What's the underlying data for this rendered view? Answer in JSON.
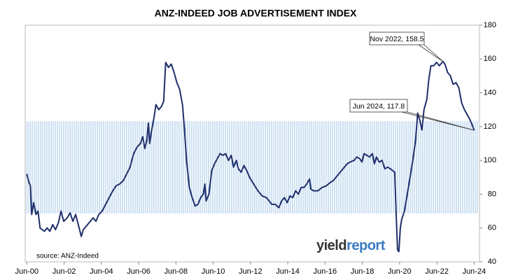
{
  "chart_data": {
    "type": "line",
    "title": "ANZ-INDEED JOB ADVERTISEMENT INDEX",
    "source": "source: ANZ-Indeed",
    "logo": [
      "yield",
      "report"
    ],
    "color": "#1f2f6b",
    "band_color": "#9dc3e6",
    "shaded_range": [
      68.6,
      123.2
    ],
    "xlim": [
      2000.45,
      2024.75
    ],
    "ylim": [
      40,
      180
    ],
    "yticks": [
      40,
      60,
      80,
      100,
      120,
      140,
      160,
      180
    ],
    "y_axis_side": "right",
    "xticks": [
      {
        "value": 2000.5,
        "label": "Jun-00"
      },
      {
        "value": 2002.5,
        "label": "Jun-02"
      },
      {
        "value": 2004.5,
        "label": "Jun-04"
      },
      {
        "value": 2006.5,
        "label": "Jun-06"
      },
      {
        "value": 2008.5,
        "label": "Jun-08"
      },
      {
        "value": 2010.5,
        "label": "Jun-10"
      },
      {
        "value": 2012.5,
        "label": "Jun-12"
      },
      {
        "value": 2014.5,
        "label": "Jun-14"
      },
      {
        "value": 2016.5,
        "label": "Jun-16"
      },
      {
        "value": 2018.5,
        "label": "Jun-18"
      },
      {
        "value": 2020.5,
        "label": "Jun-20"
      },
      {
        "value": 2022.5,
        "label": "Jun-22"
      },
      {
        "value": 2024.5,
        "label": "Jun-24"
      }
    ],
    "annotations": [
      {
        "text": "Nov 2022, 158.5",
        "x": 2022.83,
        "y": 158.5
      },
      {
        "text": "Jun 2024, 117.8",
        "x": 2024.5,
        "y": 117.8
      }
    ],
    "x": [
      2000.5,
      2000.61,
      2000.69,
      2000.76,
      2000.87,
      2000.99,
      2001.1,
      2001.21,
      2001.44,
      2001.59,
      2001.74,
      2001.89,
      2002.04,
      2002.19,
      2002.34,
      2002.48,
      2002.67,
      2002.82,
      2002.97,
      2003.12,
      2003.31,
      2003.42,
      2003.53,
      2003.76,
      2003.91,
      2004.06,
      2004.21,
      2004.36,
      2004.54,
      2004.73,
      2004.92,
      2005.11,
      2005.29,
      2005.48,
      2005.67,
      2005.86,
      2006.04,
      2006.23,
      2006.42,
      2006.6,
      2006.72,
      2006.83,
      2006.94,
      2007.02,
      2007.09,
      2007.2,
      2007.32,
      2007.43,
      2007.58,
      2007.73,
      2007.84,
      2007.95,
      2008.1,
      2008.25,
      2008.4,
      2008.55,
      2008.7,
      2008.85,
      2008.96,
      2009.07,
      2009.22,
      2009.37,
      2009.53,
      2009.68,
      2009.83,
      2009.97,
      2010.05,
      2010.12,
      2010.27,
      2010.42,
      2010.57,
      2010.72,
      2010.87,
      2011.02,
      2011.17,
      2011.32,
      2011.47,
      2011.59,
      2011.74,
      2011.85,
      2012.0,
      2012.15,
      2012.3,
      2012.45,
      2012.67,
      2012.9,
      2013.12,
      2013.35,
      2013.5,
      2013.64,
      2013.83,
      2014.02,
      2014.17,
      2014.32,
      2014.47,
      2014.62,
      2014.77,
      2014.92,
      2015.07,
      2015.22,
      2015.37,
      2015.52,
      2015.67,
      2015.74,
      2015.89,
      2016.12,
      2016.34,
      2016.57,
      2016.79,
      2016.94,
      2017.09,
      2017.24,
      2017.39,
      2017.54,
      2017.69,
      2017.84,
      2018.06,
      2018.21,
      2018.36,
      2018.48,
      2018.59,
      2018.74,
      2018.89,
      2019.04,
      2019.15,
      2019.26,
      2019.41,
      2019.56,
      2019.71,
      2019.86,
      2020.01,
      2020.12,
      2020.24,
      2020.31,
      2020.39,
      2020.46,
      2020.54,
      2020.61,
      2020.76,
      2020.91,
      2021.06,
      2021.21,
      2021.36,
      2021.47,
      2021.58,
      2021.7,
      2021.81,
      2021.96,
      2022.07,
      2022.18,
      2022.33,
      2022.48,
      2022.63,
      2022.83,
      2022.93,
      2023.08,
      2023.23,
      2023.37,
      2023.53,
      2023.68,
      2023.83,
      2023.98,
      2024.13,
      2024.28,
      2024.43,
      2024.5
    ],
    "values": [
      92,
      87,
      85,
      68,
      75,
      68,
      70,
      60,
      58,
      60,
      58,
      62,
      59,
      63,
      70,
      64,
      66,
      69,
      64,
      68,
      60,
      55,
      59,
      62,
      64,
      66,
      64,
      68,
      70,
      74,
      78,
      82,
      85,
      86,
      88,
      92,
      96,
      104,
      108,
      110,
      114,
      107,
      112,
      122,
      110,
      118,
      125,
      133,
      130,
      132,
      135,
      158,
      155,
      157,
      152,
      146,
      142,
      133,
      118,
      100,
      84,
      78,
      73,
      74,
      78,
      80,
      86,
      76,
      80,
      94,
      98,
      101,
      104,
      103,
      104,
      100,
      103,
      96,
      100,
      95,
      93,
      97,
      94,
      90,
      86,
      82,
      79,
      78,
      76,
      74,
      74,
      72,
      76,
      78,
      75,
      79,
      78,
      82,
      80,
      84,
      84,
      86,
      89,
      83,
      82,
      82,
      84,
      85,
      87,
      88,
      90,
      92,
      94,
      96,
      98,
      99,
      100,
      102,
      101,
      99,
      104,
      103,
      102,
      104,
      98,
      102,
      99,
      100,
      95,
      96,
      95,
      94,
      93,
      70,
      47,
      46,
      60,
      65,
      70,
      80,
      90,
      100,
      112,
      128,
      124,
      118,
      130,
      136,
      148,
      156,
      156,
      158,
      156,
      158.5,
      157,
      152,
      150,
      145,
      146,
      143,
      134,
      130,
      127,
      124,
      120,
      117.8
    ]
  }
}
